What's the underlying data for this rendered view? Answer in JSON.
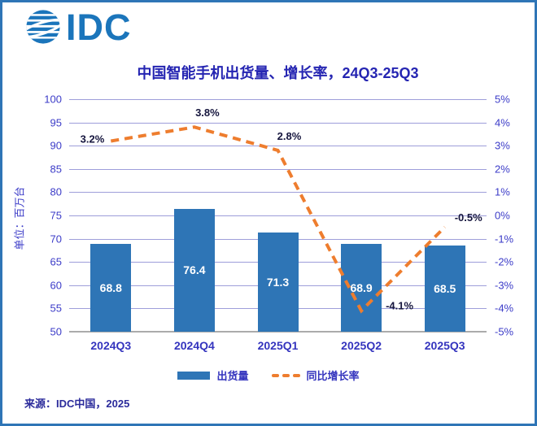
{
  "logo": {
    "text": "IDC"
  },
  "title": "中国智能手机出货量、增长率，24Q3-25Q3",
  "source": "来源：IDC中国，2025",
  "legend": {
    "bar": "出货量",
    "line": "同比增长率"
  },
  "colors": {
    "bar": "#2E75B6",
    "line": "#EE7D2E",
    "grid": "#9E9EDA",
    "axis_line": "#ABABAB",
    "axis_text": "#3C3CC8",
    "category_text": "#3434BE",
    "data_label": "#16163E",
    "bar_label": "#FFFFFF",
    "title_text": "#2525B2",
    "border": "#2E75B6",
    "logo_blue": "#1B75BB"
  },
  "chart_data": {
    "type": "bar+line combo",
    "title": "中国智能手机出货量、增长率，24Q3-25Q3",
    "categories": [
      "2024Q3",
      "2024Q4",
      "2025Q1",
      "2025Q2",
      "2025Q3"
    ],
    "series": [
      {
        "name": "出货量",
        "type": "bar",
        "axis": "left",
        "values": [
          68.8,
          76.4,
          71.3,
          68.9,
          68.5
        ],
        "labels": [
          "68.8",
          "76.4",
          "71.3",
          "68.9",
          "68.5"
        ]
      },
      {
        "name": "同比增长率",
        "type": "line",
        "style": "dashed",
        "axis": "right",
        "values": [
          3.2,
          3.8,
          2.8,
          -4.1,
          -0.5
        ],
        "labels": [
          "3.2%",
          "3.8%",
          "2.8%",
          "-4.1%",
          "-0.5%"
        ]
      }
    ],
    "left_axis": {
      "label": "单位：百万台",
      "min": 50,
      "max": 100,
      "ticks": [
        "100",
        "95",
        "90",
        "85",
        "80",
        "75",
        "70",
        "65",
        "60",
        "55",
        "50"
      ]
    },
    "right_axis": {
      "min": -5,
      "max": 5,
      "ticks": [
        "5%",
        "4%",
        "3%",
        "2%",
        "1%",
        "0%",
        "-1%",
        "-2%",
        "-3%",
        "-4%",
        "-5%"
      ]
    },
    "grid": true,
    "legend_position": "bottom"
  }
}
